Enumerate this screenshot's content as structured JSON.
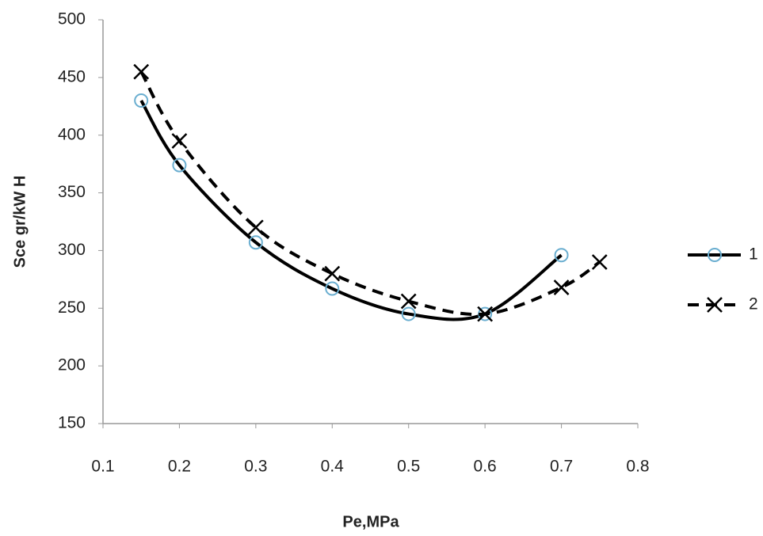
{
  "chart_data": {
    "type": "line",
    "x_label": "Pe,MPa",
    "y_label": "Sce gr/kW H",
    "xlim": [
      0.1,
      0.8
    ],
    "xticks": [
      0.1,
      0.2,
      0.3,
      0.4,
      0.5,
      0.6,
      0.7,
      0.8
    ],
    "ylim": [
      150,
      500
    ],
    "yticks": [
      150,
      200,
      250,
      300,
      350,
      400,
      450,
      500
    ],
    "grid": false,
    "legend": "right",
    "series": [
      {
        "name": "1",
        "color": "#000000",
        "marker": "circle",
        "marker_color": "#6aaed0",
        "dashed": false,
        "x": [
          0.15,
          0.2,
          0.3,
          0.4,
          0.5,
          0.6,
          0.7
        ],
        "values": [
          430,
          374,
          307,
          267,
          245,
          245,
          296
        ]
      },
      {
        "name": "2",
        "color": "#000000",
        "marker": "x",
        "marker_color": "#000000",
        "dashed": true,
        "x": [
          0.15,
          0.2,
          0.3,
          0.4,
          0.5,
          0.6,
          0.7,
          0.75
        ],
        "values": [
          455,
          395,
          320,
          280,
          256,
          245,
          268,
          290
        ]
      }
    ]
  }
}
